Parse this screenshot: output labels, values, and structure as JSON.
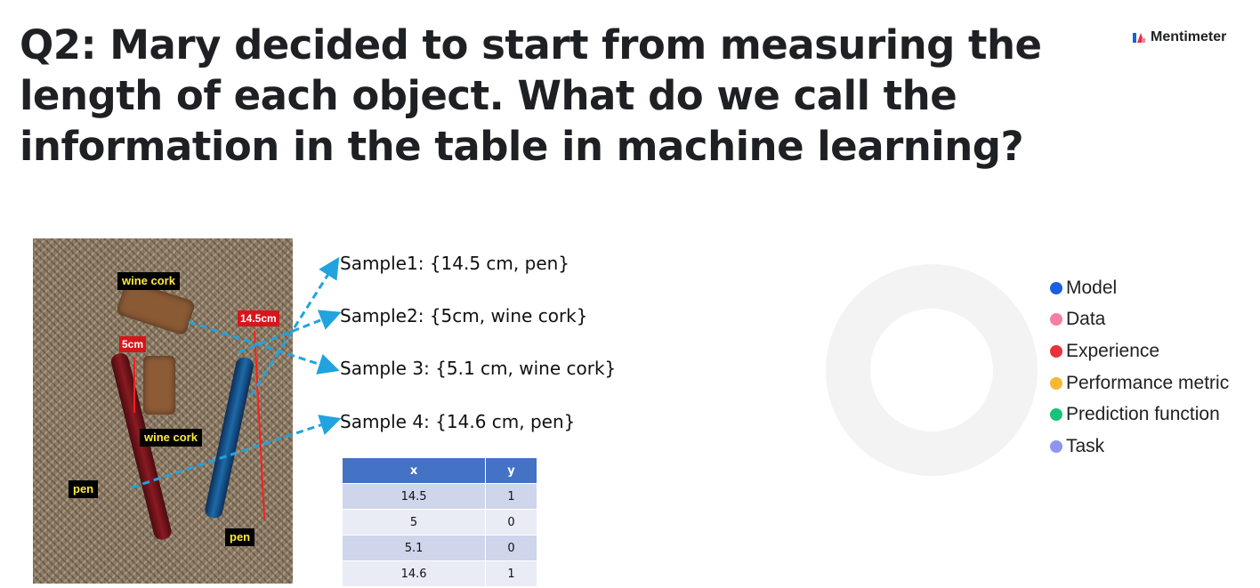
{
  "question": {
    "title": "Q2: Mary decided to start from measuring the length of each object. What do we call the information in the table in machine learning?"
  },
  "brand": {
    "name": "Mentimeter",
    "logo_icon": "mentimeter-logo-icon"
  },
  "photo": {
    "tags": {
      "wine_cork_top": "wine cork",
      "wine_cork_bottom": "wine cork",
      "pen_left": "pen",
      "pen_right": "pen",
      "measure_5cm": "5cm",
      "measure_14_5cm": "14.5cm"
    }
  },
  "samples": [
    "Sample1: {14.5 cm, pen}",
    "Sample2: {5cm, wine cork}",
    "Sample 3: {5.1 cm, wine cork}",
    "Sample 4: {14.6 cm, pen}"
  ],
  "table": {
    "headers": [
      "x",
      "y"
    ],
    "rows": [
      [
        "14.5",
        "1"
      ],
      [
        "5",
        "0"
      ],
      [
        "5.1",
        "0"
      ],
      [
        "14.6",
        "1"
      ]
    ]
  },
  "chart_data": {
    "type": "pie",
    "categories": [
      "Model",
      "Data",
      "Experience",
      "Performance metric",
      "Prediction function",
      "Task"
    ],
    "values": [
      0,
      0,
      0,
      0,
      0,
      0
    ],
    "colors": [
      "#1a5fe0",
      "#f77fa0",
      "#e8323c",
      "#f7b733",
      "#17c27a",
      "#8e95f0"
    ],
    "empty_ring_color": "#f3f3f3",
    "legend_position": "right"
  }
}
